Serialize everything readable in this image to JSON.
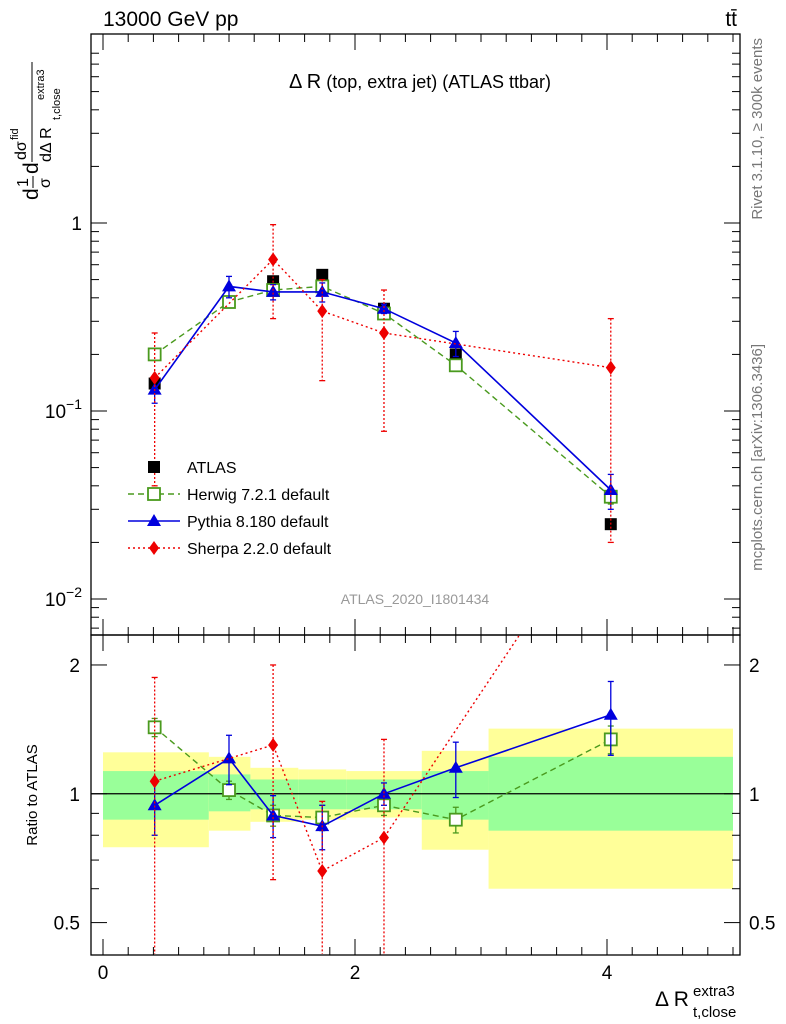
{
  "header": {
    "energy_label": "13000 GeV pp",
    "process_label": "tt̄",
    "side_label_rivet": "Rivet 3.1.10, ≥ 300k events",
    "side_label_mcplots": "mcplots.cern.ch [arXiv:1306.3436]",
    "watermark": "ATLAS_2020_I1801434"
  },
  "colors": {
    "atlas": "#000000",
    "herwig": "#4a9a1e",
    "pythia": "#0000dd",
    "sherpa": "#ee0000",
    "band_inner": "#99ff99",
    "band_outer": "#ffff99"
  },
  "chart_data": [
    {
      "type": "line",
      "panel": "main",
      "title": "Δ R (top, extra jet) (ATLAS ttbar)",
      "ylabel": "1/σ dσ^{fid}/dΔ R_{t,close}^{extra3}",
      "yscale": "log",
      "ylim": [
        0.007,
        8
      ],
      "xlim": [
        -0.2,
        5.2
      ],
      "y_ticks": [
        {
          "value": 1,
          "label": "1"
        },
        {
          "value": 0.1,
          "label": "10^-1"
        },
        {
          "value": 0.01,
          "label": "10^-2"
        }
      ],
      "legend_position": "bottom-left",
      "series": [
        {
          "name": "ATLAS",
          "marker": "square-filled",
          "x": [
            0.41,
            1.0,
            1.35,
            1.74,
            2.23,
            2.8,
            4.03
          ],
          "y": [
            0.14,
            0.38,
            0.49,
            0.53,
            0.35,
            0.2,
            0.025
          ]
        },
        {
          "name": "Herwig 7.2.1 default",
          "marker": "square-open",
          "line": "dashed",
          "x": [
            0.41,
            1.0,
            1.35,
            1.74,
            2.23,
            2.8,
            4.03
          ],
          "y": [
            0.2,
            0.38,
            0.44,
            0.46,
            0.33,
            0.175,
            0.035
          ],
          "err": [
            0.01,
            0.02,
            0.02,
            0.03,
            0.02,
            0.012,
            0.003
          ]
        },
        {
          "name": "Pythia 8.180 default",
          "marker": "triangle",
          "line": "solid",
          "x": [
            0.41,
            1.0,
            1.35,
            1.74,
            2.23,
            2.8,
            4.03
          ],
          "y": [
            0.13,
            0.46,
            0.43,
            0.43,
            0.35,
            0.23,
            0.038
          ],
          "err": [
            0.02,
            0.06,
            0.04,
            0.05,
            0.02,
            0.035,
            0.008
          ]
        },
        {
          "name": "Sherpa 2.2.0 default",
          "marker": "diamond",
          "line": "dotted",
          "x": [
            0.41,
            1.35,
            1.74,
            2.23,
            4.03
          ],
          "y": [
            0.15,
            0.64,
            0.34,
            0.26,
            0.17
          ],
          "err_lo": [
            0.11,
            0.33,
            0.195,
            0.182,
            0.15
          ],
          "err_hi": [
            0.11,
            0.34,
            0.16,
            0.18,
            0.14
          ]
        }
      ]
    },
    {
      "type": "line",
      "panel": "ratio",
      "ylabel": "Ratio to ATLAS",
      "xlabel": "Δ R_{t,close}^{extra3}",
      "yscale": "log",
      "ylim": [
        0.42,
        2.35
      ],
      "xlim": [
        -0.2,
        5.2
      ],
      "reference_line": 1,
      "y_ticks": [
        {
          "value": 0.5,
          "label": "0.5"
        },
        {
          "value": 1,
          "label": "1"
        },
        {
          "value": 2,
          "label": "2"
        }
      ],
      "x_ticks": [
        {
          "value": 0,
          "label": "0"
        },
        {
          "value": 2,
          "label": "2"
        },
        {
          "value": 4,
          "label": "4"
        }
      ],
      "bands": [
        {
          "x0": 0.0,
          "x1": 0.84,
          "inner": [
            0.87,
            1.13
          ],
          "outer": [
            0.75,
            1.25
          ]
        },
        {
          "x0": 0.84,
          "x1": 1.17,
          "inner": [
            0.91,
            1.11
          ],
          "outer": [
            0.82,
            1.22
          ]
        },
        {
          "x0": 1.17,
          "x1": 1.55,
          "inner": [
            0.92,
            1.08
          ],
          "outer": [
            0.86,
            1.15
          ]
        },
        {
          "x0": 1.55,
          "x1": 1.93,
          "inner": [
            0.92,
            1.08
          ],
          "outer": [
            0.87,
            1.14
          ]
        },
        {
          "x0": 1.93,
          "x1": 2.53,
          "inner": [
            0.92,
            1.08
          ],
          "outer": [
            0.88,
            1.13
          ]
        },
        {
          "x0": 2.53,
          "x1": 3.06,
          "inner": [
            0.87,
            1.13
          ],
          "outer": [
            0.74,
            1.26
          ]
        },
        {
          "x0": 3.06,
          "x1": 5.0,
          "inner": [
            0.82,
            1.22
          ],
          "outer": [
            0.6,
            1.42
          ]
        }
      ],
      "series": [
        {
          "name": "Herwig 7.2.1 default",
          "marker": "square-open",
          "line": "dashed",
          "x": [
            0.41,
            1.0,
            1.35,
            1.74,
            2.23,
            2.8,
            4.03
          ],
          "y": [
            1.43,
            1.02,
            0.89,
            0.88,
            0.94,
            0.87,
            1.34
          ],
          "err": [
            0.07,
            0.05,
            0.05,
            0.06,
            0.05,
            0.06,
            0.1
          ]
        },
        {
          "name": "Pythia 8.180 default",
          "marker": "triangle",
          "line": "solid",
          "x": [
            0.41,
            1.0,
            1.35,
            1.74,
            2.23,
            2.8,
            4.03
          ],
          "y": [
            0.94,
            1.21,
            0.89,
            0.84,
            1.0,
            1.15,
            1.53
          ],
          "err": [
            0.14,
            0.16,
            0.1,
            0.1,
            0.06,
            0.17,
            0.3
          ]
        },
        {
          "name": "Sherpa 2.2.0 default",
          "marker": "diamond",
          "line": "dotted",
          "x": [
            0.41,
            1.35,
            1.74,
            2.23,
            3.3
          ],
          "y": [
            1.07,
            1.3,
            0.66,
            0.79,
            2.5
          ],
          "err_lo": [
            0.8,
            0.67,
            0.4,
            0.55,
            0
          ],
          "err_hi": [
            0.8,
            0.7,
            0.3,
            0.55,
            0
          ]
        }
      ]
    }
  ]
}
